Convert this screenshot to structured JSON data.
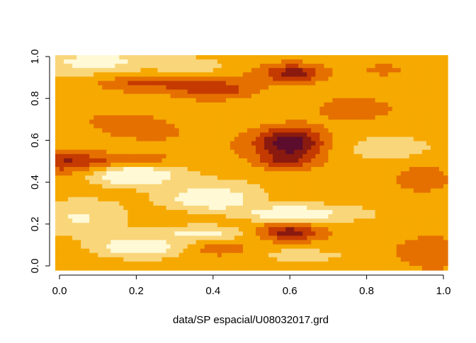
{
  "chart_data": {
    "type": "heatmap",
    "title": "",
    "xlabel": "data/SP espacial/U08032017.grd",
    "ylabel": "",
    "xlim": [
      0,
      1
    ],
    "ylim": [
      0,
      1
    ],
    "x_ticks": [
      "0.0",
      "0.2",
      "0.4",
      "0.6",
      "0.8",
      "1.0"
    ],
    "y_ticks": [
      "0.0",
      "0.2",
      "0.4",
      "0.6",
      "0.8",
      "1.0"
    ],
    "legend": "none",
    "grid": false,
    "palette": [
      "#fff9d6",
      "#f9d67a",
      "#f6a900",
      "#e57000",
      "#c53a00",
      "#8a1a10",
      "#5c0c2c"
    ],
    "background_level": 2,
    "blobs": [
      {
        "x": 0.6,
        "y": 0.59,
        "sx": 0.06,
        "sy": 0.05,
        "amp": 4.2
      },
      {
        "x": 0.59,
        "y": 0.5,
        "sx": 0.055,
        "sy": 0.03,
        "amp": 2.0
      },
      {
        "x": 0.61,
        "y": 0.92,
        "sx": 0.05,
        "sy": 0.03,
        "amp": 3.0
      },
      {
        "x": 0.6,
        "y": 0.16,
        "sx": 0.06,
        "sy": 0.03,
        "amp": 3.0
      },
      {
        "x": 0.4,
        "y": 0.84,
        "sx": 0.07,
        "sy": 0.035,
        "amp": 2.2
      },
      {
        "x": 0.21,
        "y": 0.87,
        "sx": 0.08,
        "sy": 0.025,
        "amp": 1.8
      },
      {
        "x": 0.02,
        "y": 0.5,
        "sx": 0.08,
        "sy": 0.035,
        "amp": 2.6
      },
      {
        "x": 0.2,
        "y": 0.51,
        "sx": 0.06,
        "sy": 0.02,
        "amp": 1.4
      },
      {
        "x": 0.42,
        "y": 0.08,
        "sx": 0.06,
        "sy": 0.025,
        "amp": 1.6
      },
      {
        "x": 0.75,
        "y": 0.75,
        "sx": 0.06,
        "sy": 0.04,
        "amp": 1.0
      },
      {
        "x": 0.2,
        "y": 0.66,
        "sx": 0.09,
        "sy": 0.05,
        "amp": 1.0
      },
      {
        "x": 0.97,
        "y": 0.05,
        "sx": 0.05,
        "sy": 0.06,
        "amp": 1.1
      },
      {
        "x": 0.85,
        "y": 0.93,
        "sx": 0.08,
        "sy": 0.04,
        "amp": 0.9
      },
      {
        "x": 0.95,
        "y": 0.42,
        "sx": 0.04,
        "sy": 0.05,
        "amp": 0.8
      },
      {
        "x": 0.19,
        "y": 0.43,
        "sx": 0.08,
        "sy": 0.035,
        "amp": -3.0
      },
      {
        "x": 0.39,
        "y": 0.32,
        "sx": 0.08,
        "sy": 0.04,
        "amp": -2.8
      },
      {
        "x": 0.6,
        "y": 0.25,
        "sx": 0.1,
        "sy": 0.03,
        "amp": -2.6
      },
      {
        "x": 0.2,
        "y": 0.09,
        "sx": 0.08,
        "sy": 0.035,
        "amp": -2.6
      },
      {
        "x": 0.37,
        "y": 0.16,
        "sx": 0.08,
        "sy": 0.025,
        "amp": -1.8
      },
      {
        "x": 0.06,
        "y": 0.22,
        "sx": 0.08,
        "sy": 0.07,
        "amp": -1.3
      },
      {
        "x": 0.1,
        "y": 0.98,
        "sx": 0.1,
        "sy": 0.035,
        "amp": -2.0
      },
      {
        "x": 0.35,
        "y": 0.95,
        "sx": 0.06,
        "sy": 0.03,
        "amp": -1.4
      },
      {
        "x": 0.65,
        "y": 0.05,
        "sx": 0.08,
        "sy": 0.02,
        "amp": -1.0
      },
      {
        "x": 0.85,
        "y": 0.55,
        "sx": 0.08,
        "sy": 0.05,
        "amp": -0.6
      }
    ]
  }
}
